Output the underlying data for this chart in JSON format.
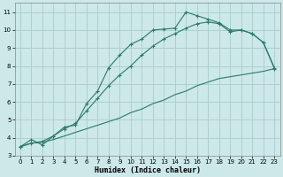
{
  "bg_color": "#cce8e8",
  "grid_color": "#aacccc",
  "line_color": "#2a7a6a",
  "xlabel": "Humidex (Indice chaleur)",
  "ylim": [
    3,
    11.5
  ],
  "xlim": [
    -0.5,
    23.5
  ],
  "yticks": [
    3,
    4,
    5,
    6,
    7,
    8,
    9,
    10,
    11
  ],
  "xticks": [
    0,
    1,
    2,
    3,
    4,
    5,
    6,
    7,
    8,
    9,
    10,
    11,
    12,
    13,
    14,
    15,
    16,
    17,
    18,
    19,
    20,
    21,
    22,
    23
  ],
  "series1_x": [
    0,
    1,
    2,
    3,
    4,
    5,
    6,
    7,
    8,
    9,
    10,
    11,
    12,
    13,
    14,
    15,
    16,
    17,
    18,
    19,
    20,
    21,
    22,
    23
  ],
  "series1_y": [
    3.5,
    3.9,
    3.6,
    4.1,
    4.6,
    4.7,
    5.9,
    6.6,
    7.9,
    8.6,
    9.2,
    9.5,
    10.0,
    10.05,
    10.1,
    11.0,
    10.8,
    10.6,
    10.4,
    10.0,
    10.0,
    9.8,
    9.3,
    7.9
  ],
  "series2_x": [
    0,
    1,
    2,
    3,
    4,
    5,
    6,
    7,
    8,
    9,
    10,
    11,
    12,
    13,
    14,
    15,
    16,
    17,
    18,
    19,
    20,
    21,
    22,
    23
  ],
  "series2_y": [
    3.5,
    3.7,
    3.8,
    4.1,
    4.5,
    4.8,
    5.5,
    6.2,
    6.9,
    7.5,
    8.0,
    8.6,
    9.1,
    9.5,
    9.8,
    10.1,
    10.35,
    10.45,
    10.35,
    9.9,
    10.0,
    9.8,
    9.3,
    7.85
  ],
  "series3_x": [
    0,
    1,
    2,
    3,
    4,
    5,
    6,
    7,
    8,
    9,
    10,
    11,
    12,
    13,
    14,
    15,
    16,
    17,
    18,
    19,
    20,
    21,
    22,
    23
  ],
  "series3_y": [
    3.5,
    3.7,
    3.75,
    3.9,
    4.1,
    4.3,
    4.5,
    4.7,
    4.9,
    5.1,
    5.4,
    5.6,
    5.9,
    6.1,
    6.4,
    6.6,
    6.9,
    7.1,
    7.3,
    7.4,
    7.5,
    7.6,
    7.7,
    7.85
  ]
}
